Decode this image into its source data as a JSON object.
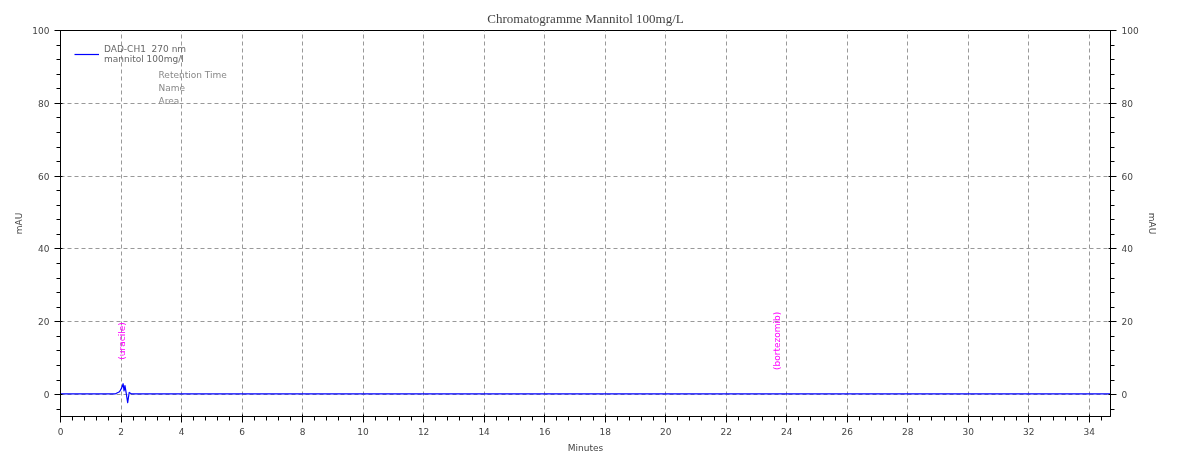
{
  "chart_data": {
    "type": "line",
    "title": "Chromatogramme Mannitol 100mg/L",
    "xlabel": "Minutes",
    "ylabel": "mAU",
    "y2label": "mAU",
    "x": [
      0,
      1.8,
      1.95,
      2.02,
      2.07,
      2.1,
      2.13,
      2.17,
      2.22,
      2.27,
      2.35,
      34.7
    ],
    "series": [
      {
        "name": "DAD-CH1  270 nm\nmannitol 100mg/l",
        "color": "#0000ff",
        "values": [
          0.2,
          0.2,
          0.8,
          1.8,
          3.0,
          1.0,
          2.5,
          0.5,
          -2.2,
          0.6,
          0.2,
          0.2
        ]
      }
    ],
    "xlim": [
      0,
      34.7
    ],
    "xticks": [
      0,
      2,
      4,
      6,
      8,
      10,
      12,
      14,
      16,
      18,
      20,
      22,
      24,
      26,
      28,
      30,
      32,
      34
    ],
    "ylim": [
      -6,
      100
    ],
    "yticks": [
      0,
      20,
      40,
      60,
      80,
      100
    ],
    "y2lim": [
      -6,
      100
    ],
    "y2ticks": [
      0,
      20,
      40,
      60,
      80,
      100
    ],
    "annotations": [
      "Retention Time",
      "Name",
      "Area",
      {
        "text": "(uracile)",
        "x": 2.07,
        "y": 3.0
      },
      {
        "text": "(bortezomib)",
        "x": 23.7,
        "y": 0.2
      }
    ],
    "grid": true,
    "legend": "top left",
    "line_style": "solid",
    "marker": "none"
  }
}
